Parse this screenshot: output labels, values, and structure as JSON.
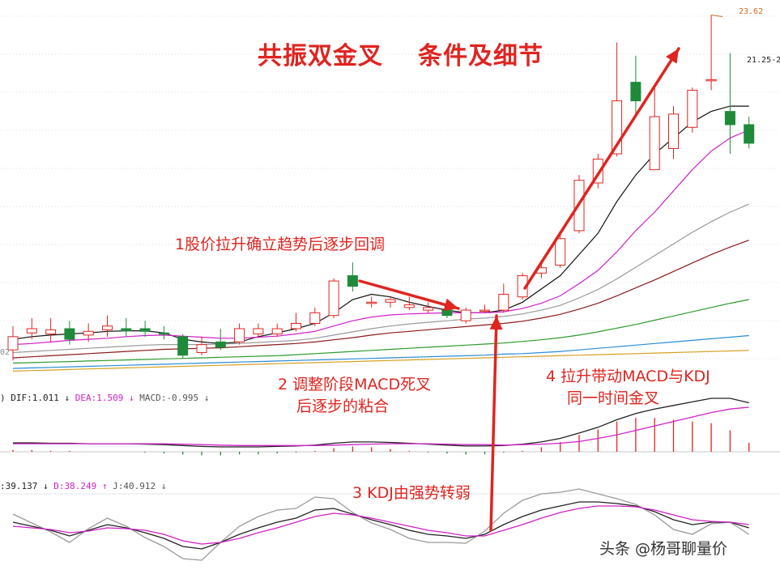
{
  "title_left": "共振双金叉",
  "title_right": "条件及细节",
  "annotations": {
    "a1": "1股价拉升确立趋势后逐步回调",
    "a2_line1": "2 调整阶段MACD死叉",
    "a2_line2": "后逐步的粘合",
    "a3": "3 KDJ由强势转弱",
    "a4_line1": "4 拉升带动MACD与KDJ",
    "a4_line2": "同一时间金叉"
  },
  "price_labels": {
    "high": "23.62",
    "mid": "21.25-2",
    "left_cut": "02"
  },
  "macd_legend": {
    "prefix": ")",
    "dif": "DIF:1.011",
    "dif_arrow": "↓",
    "dea": "DEA:1.509",
    "dea_arrow": "↓",
    "macd": "MACD:-0.995",
    "macd_arrow": "↓"
  },
  "kdj_legend": {
    "k": ":39.137",
    "k_arrow": "↓",
    "d": "D:38.249",
    "d_arrow": "↑",
    "j": "J:40.912",
    "j_arrow": "↓"
  },
  "watermark": "头条 @杨哥聊量价",
  "colors": {
    "up": "#e0241f",
    "down": "#1e8a3a",
    "annotation": "#e0241f",
    "dif": "#222222",
    "dea": "#d020c8",
    "ma5": "#111111",
    "ma10": "#d020c8",
    "ma20": "#9a9a9a",
    "ma30": "#8b1a1a",
    "ma60": "#2e9b2e",
    "ma120": "#2a8bd6",
    "ma250": "#d6a020"
  },
  "chart_data": {
    "type": "candlestick",
    "candles": [
      {
        "o": 17.3,
        "c": 17.55,
        "h": 17.75,
        "l": 17.1
      },
      {
        "o": 17.62,
        "c": 17.7,
        "h": 17.9,
        "l": 17.5
      },
      {
        "o": 17.6,
        "c": 17.68,
        "h": 17.9,
        "l": 17.45
      },
      {
        "o": 17.7,
        "c": 17.5,
        "h": 17.85,
        "l": 17.4
      },
      {
        "o": 17.58,
        "c": 17.65,
        "h": 17.8,
        "l": 17.45
      },
      {
        "o": 17.68,
        "c": 17.75,
        "h": 17.95,
        "l": 17.55
      },
      {
        "o": 17.7,
        "c": 17.66,
        "h": 17.9,
        "l": 17.55
      },
      {
        "o": 17.7,
        "c": 17.65,
        "h": 17.85,
        "l": 17.55
      },
      {
        "o": 17.62,
        "c": 17.6,
        "h": 17.75,
        "l": 17.5
      },
      {
        "o": 17.55,
        "c": 17.2,
        "h": 17.6,
        "l": 17.15
      },
      {
        "o": 17.25,
        "c": 17.4,
        "h": 17.55,
        "l": 17.2
      },
      {
        "o": 17.45,
        "c": 17.35,
        "h": 17.7,
        "l": 17.3
      },
      {
        "o": 17.45,
        "c": 17.7,
        "h": 17.8,
        "l": 17.4
      },
      {
        "o": 17.6,
        "c": 17.7,
        "h": 17.8,
        "l": 17.55
      },
      {
        "o": 17.6,
        "c": 17.7,
        "h": 17.8,
        "l": 17.55
      },
      {
        "o": 17.7,
        "c": 17.8,
        "h": 18.0,
        "l": 17.65
      },
      {
        "o": 17.8,
        "c": 18.0,
        "h": 18.1,
        "l": 17.75
      },
      {
        "o": 17.95,
        "c": 18.6,
        "h": 18.65,
        "l": 17.9
      },
      {
        "o": 18.7,
        "c": 18.5,
        "h": 18.95,
        "l": 18.4
      },
      {
        "o": 18.2,
        "c": 18.2,
        "h": 18.3,
        "l": 18.1
      },
      {
        "o": 18.2,
        "c": 18.25,
        "h": 18.3,
        "l": 18.1
      },
      {
        "o": 18.1,
        "c": 18.15,
        "h": 18.3,
        "l": 18.05
      },
      {
        "o": 18.05,
        "c": 18.1,
        "h": 18.2,
        "l": 18.0
      },
      {
        "o": 18.05,
        "c": 17.95,
        "h": 18.1,
        "l": 17.9
      },
      {
        "o": 17.85,
        "c": 18.05,
        "h": 18.1,
        "l": 17.8
      },
      {
        "o": 18.05,
        "c": 18.05,
        "h": 18.15,
        "l": 18.0
      },
      {
        "o": 18.05,
        "c": 18.35,
        "h": 18.55,
        "l": 18.0
      },
      {
        "o": 18.3,
        "c": 18.7,
        "h": 18.75,
        "l": 18.25
      },
      {
        "o": 18.75,
        "c": 18.85,
        "h": 19.0,
        "l": 18.65
      },
      {
        "o": 18.9,
        "c": 19.4,
        "h": 19.5,
        "l": 18.85
      },
      {
        "o": 19.55,
        "c": 20.5,
        "h": 20.6,
        "l": 19.5
      },
      {
        "o": 20.45,
        "c": 20.9,
        "h": 21.0,
        "l": 20.35
      },
      {
        "o": 21.0,
        "c": 22.0,
        "h": 23.1,
        "l": 20.95
      },
      {
        "o": 22.35,
        "c": 22.0,
        "h": 22.85,
        "l": 21.7
      },
      {
        "o": 20.7,
        "c": 21.7,
        "h": 22.25,
        "l": 20.7
      },
      {
        "o": 21.1,
        "c": 21.75,
        "h": 21.9,
        "l": 20.9
      },
      {
        "o": 21.5,
        "c": 22.2,
        "h": 22.25,
        "l": 21.4
      },
      {
        "o": 22.4,
        "c": 22.4,
        "h": 23.62,
        "l": 22.2
      },
      {
        "o": 21.8,
        "c": 21.55,
        "h": 22.9,
        "l": 21.0
      },
      {
        "o": 21.55,
        "c": 21.2,
        "h": 21.7,
        "l": 21.1
      }
    ],
    "moving_averages": [
      {
        "name": "MA5",
        "values": [
          17.5,
          17.55,
          17.58,
          17.6,
          17.62,
          17.65,
          17.66,
          17.66,
          17.62,
          17.5,
          17.45,
          17.42,
          17.45,
          17.55,
          17.62,
          17.7,
          17.8,
          18.0,
          18.25,
          18.35,
          18.3,
          18.2,
          18.12,
          18.05,
          18.0,
          18.0,
          18.05,
          18.2,
          18.45,
          18.7,
          19.1,
          19.5,
          20.1,
          20.6,
          21.0,
          21.3,
          21.6,
          21.8,
          21.9,
          21.9
        ]
      },
      {
        "name": "MA10",
        "values": [
          17.4,
          17.42,
          17.45,
          17.48,
          17.5,
          17.52,
          17.55,
          17.57,
          17.58,
          17.56,
          17.54,
          17.52,
          17.52,
          17.54,
          17.56,
          17.6,
          17.65,
          17.75,
          17.85,
          17.92,
          17.96,
          17.98,
          17.99,
          18.0,
          18.0,
          18.0,
          18.02,
          18.08,
          18.18,
          18.32,
          18.55,
          18.8,
          19.15,
          19.55,
          19.9,
          20.3,
          20.7,
          21.05,
          21.3,
          21.45
        ]
      },
      {
        "name": "MA20",
        "values": [
          17.25,
          17.27,
          17.29,
          17.31,
          17.33,
          17.35,
          17.37,
          17.39,
          17.4,
          17.4,
          17.4,
          17.41,
          17.42,
          17.44,
          17.46,
          17.48,
          17.52,
          17.58,
          17.64,
          17.7,
          17.75,
          17.79,
          17.82,
          17.85,
          17.88,
          17.9,
          17.93,
          17.98,
          18.05,
          18.14,
          18.28,
          18.44,
          18.64,
          18.86,
          19.08,
          19.3,
          19.52,
          19.72,
          19.9,
          20.05
        ]
      },
      {
        "name": "MA30",
        "values": [
          17.15,
          17.17,
          17.19,
          17.21,
          17.23,
          17.25,
          17.27,
          17.29,
          17.31,
          17.32,
          17.33,
          17.34,
          17.36,
          17.38,
          17.4,
          17.42,
          17.45,
          17.49,
          17.53,
          17.58,
          17.62,
          17.65,
          17.68,
          17.71,
          17.74,
          17.77,
          17.8,
          17.84,
          17.9,
          17.97,
          18.07,
          18.18,
          18.32,
          18.47,
          18.62,
          18.78,
          18.94,
          19.1,
          19.24,
          19.37
        ]
      },
      {
        "name": "MA60",
        "values": [
          17.05,
          17.06,
          17.07,
          17.08,
          17.09,
          17.1,
          17.11,
          17.12,
          17.13,
          17.14,
          17.15,
          17.16,
          17.17,
          17.18,
          17.19,
          17.21,
          17.23,
          17.25,
          17.27,
          17.29,
          17.31,
          17.33,
          17.35,
          17.37,
          17.39,
          17.41,
          17.43,
          17.46,
          17.49,
          17.53,
          17.58,
          17.64,
          17.71,
          17.78,
          17.86,
          17.94,
          18.02,
          18.1,
          18.18,
          18.25
        ]
      },
      {
        "name": "MA120",
        "values": [
          16.95,
          16.96,
          16.97,
          16.98,
          16.99,
          17.0,
          17.01,
          17.02,
          17.03,
          17.04,
          17.05,
          17.06,
          17.07,
          17.08,
          17.09,
          17.1,
          17.11,
          17.12,
          17.13,
          17.14,
          17.15,
          17.16,
          17.17,
          17.18,
          17.19,
          17.2,
          17.22,
          17.23,
          17.25,
          17.27,
          17.3,
          17.33,
          17.36,
          17.39,
          17.42,
          17.45,
          17.48,
          17.51,
          17.54,
          17.57
        ]
      },
      {
        "name": "MA250",
        "values": [
          16.9,
          16.91,
          16.92,
          16.93,
          16.94,
          16.95,
          16.96,
          16.97,
          16.98,
          16.99,
          17.0,
          17.01,
          17.02,
          17.03,
          17.04,
          17.05,
          17.06,
          17.07,
          17.08,
          17.09,
          17.1,
          17.11,
          17.12,
          17.13,
          17.14,
          17.15,
          17.16,
          17.17,
          17.18,
          17.19,
          17.2,
          17.21,
          17.22,
          17.23,
          17.24,
          17.25,
          17.26,
          17.27,
          17.28,
          17.29
        ]
      }
    ],
    "macd": {
      "dif": [
        0.2,
        0.2,
        0.19,
        0.19,
        0.18,
        0.18,
        0.18,
        0.17,
        0.16,
        0.14,
        0.12,
        0.11,
        0.11,
        0.11,
        0.12,
        0.13,
        0.15,
        0.19,
        0.22,
        0.22,
        0.21,
        0.19,
        0.17,
        0.15,
        0.13,
        0.13,
        0.14,
        0.17,
        0.22,
        0.3,
        0.42,
        0.55,
        0.72,
        0.86,
        0.96,
        1.04,
        1.12,
        1.2,
        1.2,
        1.1
      ],
      "dea": [
        0.18,
        0.18,
        0.18,
        0.18,
        0.18,
        0.18,
        0.18,
        0.18,
        0.18,
        0.17,
        0.16,
        0.15,
        0.14,
        0.14,
        0.14,
        0.14,
        0.14,
        0.15,
        0.16,
        0.17,
        0.18,
        0.18,
        0.18,
        0.17,
        0.16,
        0.16,
        0.15,
        0.16,
        0.17,
        0.19,
        0.23,
        0.3,
        0.38,
        0.48,
        0.58,
        0.68,
        0.78,
        0.88,
        0.96,
        1.0
      ]
    },
    "kdj": {
      "k": [
        55,
        50,
        45,
        38,
        45,
        52,
        48,
        42,
        35,
        25,
        22,
        30,
        40,
        48,
        55,
        60,
        70,
        72,
        65,
        58,
        52,
        45,
        40,
        38,
        35,
        40,
        52,
        62,
        70,
        75,
        80,
        80,
        78,
        75,
        68,
        58,
        52,
        55,
        55,
        48
      ],
      "d": [
        50,
        48,
        46,
        42,
        44,
        48,
        47,
        45,
        40,
        32,
        28,
        30,
        35,
        42,
        48,
        55,
        62,
        66,
        64,
        60,
        55,
        50,
        45,
        42,
        38,
        38,
        45,
        52,
        60,
        67,
        72,
        75,
        75,
        74,
        70,
        64,
        58,
        56,
        55,
        52
      ],
      "j": [
        65,
        54,
        43,
        30,
        47,
        60,
        50,
        36,
        25,
        10,
        8,
        30,
        50,
        62,
        70,
        72,
        86,
        84,
        67,
        54,
        46,
        35,
        30,
        30,
        29,
        44,
        66,
        82,
        90,
        92,
        96,
        90,
        84,
        77,
        64,
        46,
        40,
        53,
        55,
        40
      ]
    }
  }
}
